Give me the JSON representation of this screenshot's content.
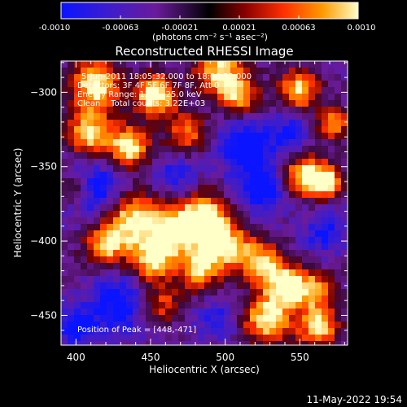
{
  "colorbar": {
    "tick_labels": [
      "-0.0010",
      "-0.00063",
      "-0.00021",
      "0.00021",
      "0.00063",
      "0.0010"
    ],
    "units": "(photons cm⁻² s⁻¹ asec⁻²)",
    "range": [
      -0.001,
      0.001
    ],
    "colormap_stops": [
      "#0a14ff",
      "#3a1cd0",
      "#6a1b9a",
      "#000000",
      "#8a0000",
      "#ff3000",
      "#ff9a00",
      "#ffffc8"
    ]
  },
  "image": {
    "title": "Reconstructed RHESSI Image",
    "info_lines": [
      "5-Jun-2011 18:05:32.000 to 18:06:52.000",
      "Detectors: 3F 4F 5F 6F 7F 8F, Att 0",
      "Energy Range: 12.0 - 25.0 keV",
      "Clean    Total counts: 3.22E+03"
    ],
    "peak_label": "Position of Peak = [448,-471]",
    "x_axis": {
      "label": "Heliocentric X (arcsec)",
      "range": [
        390,
        582
      ],
      "ticks": [
        400,
        450,
        500,
        550
      ]
    },
    "y_axis": {
      "label": "Heliocentric Y (arcsec)",
      "range": [
        -470,
        -279
      ],
      "ticks": [
        -300,
        -350,
        -400,
        -450
      ]
    }
  },
  "footer": {
    "timestamp": "11-May-2022 19:54"
  }
}
